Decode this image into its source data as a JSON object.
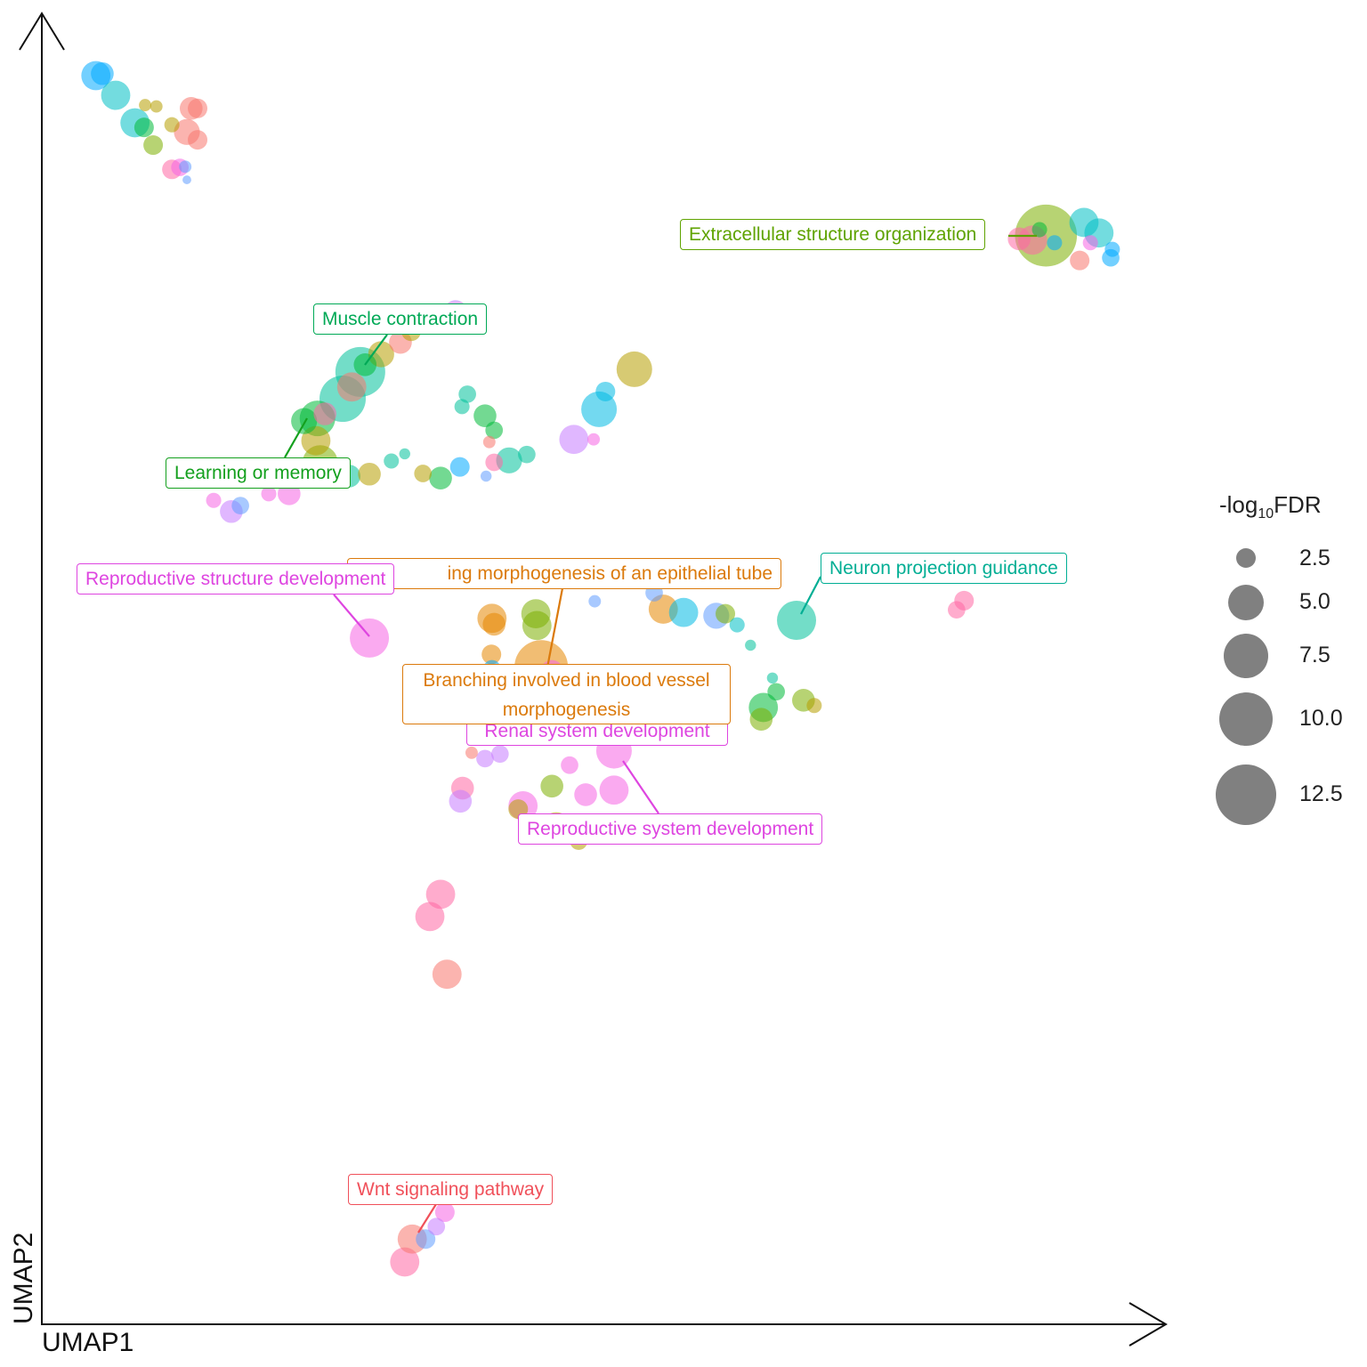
{
  "chart_data": {
    "type": "scatter",
    "title": "",
    "xlabel": "UMAP1",
    "ylabel": "UMAP2",
    "xlim": [
      0,
      21
    ],
    "ylim": [
      0,
      20
    ],
    "grid": false,
    "size_legend": {
      "title_prefix": "-log",
      "title_sub": "10",
      "title_suffix": "FDR",
      "values": [
        2.5,
        5.0,
        7.5,
        10.0,
        12.5
      ],
      "labels": [
        "2.5",
        "5.0",
        "7.5",
        "10.0",
        "12.5"
      ],
      "placement": "right"
    },
    "points": [
      [
        1.01,
        19.05,
        4,
        "#00A9FF"
      ],
      [
        1.13,
        19.08,
        3,
        "#00A9FF"
      ],
      [
        1.38,
        18.75,
        4,
        "#00BFC4"
      ],
      [
        1.74,
        18.33,
        4,
        "#00BFC4"
      ],
      [
        1.91,
        18.26,
        2.5,
        "#00BA38"
      ],
      [
        2.08,
        17.99,
        2.5,
        "#7CAE00"
      ],
      [
        1.93,
        18.6,
        1,
        "#B79F00"
      ],
      [
        2.14,
        18.58,
        1,
        "#B79F00"
      ],
      [
        2.79,
        18.55,
        3,
        "#F8766D"
      ],
      [
        2.91,
        18.55,
        2.5,
        "#F8766D"
      ],
      [
        2.71,
        18.19,
        3.5,
        "#F8766D"
      ],
      [
        2.91,
        18.07,
        2.5,
        "#F8766D"
      ],
      [
        2.43,
        18.3,
        1.5,
        "#B79F00"
      ],
      [
        2.43,
        17.62,
        2.5,
        "#FF67A4"
      ],
      [
        2.58,
        17.65,
        2,
        "#F564E3"
      ],
      [
        2.68,
        17.66,
        1,
        "#619CFF"
      ],
      [
        2.71,
        17.46,
        0.5,
        "#619CFF"
      ],
      [
        18.76,
        16.61,
        13,
        "#7CAE00"
      ],
      [
        18.51,
        16.54,
        4,
        "#FF67A4"
      ],
      [
        18.26,
        16.56,
        3,
        "#FF67A4"
      ],
      [
        19.47,
        16.81,
        4,
        "#00BFC4"
      ],
      [
        19.75,
        16.65,
        4,
        "#00BFC4"
      ],
      [
        19.39,
        16.23,
        2.5,
        "#F8766D"
      ],
      [
        19.97,
        16.27,
        2,
        "#00A9FF"
      ],
      [
        20.0,
        16.4,
        1.5,
        "#00A9FF"
      ],
      [
        19.59,
        16.5,
        1.5,
        "#F564E3"
      ],
      [
        18.92,
        16.5,
        1.5,
        "#00A9FF"
      ],
      [
        18.64,
        16.7,
        1.5,
        "#00BA38"
      ],
      [
        5.95,
        14.53,
        9,
        "#00C19A"
      ],
      [
        5.62,
        14.12,
        8,
        "#00C19A"
      ],
      [
        5.15,
        13.82,
        5,
        "#00BA38"
      ],
      [
        4.9,
        13.78,
        3.5,
        "#00BA38"
      ],
      [
        5.29,
        13.89,
        3,
        "#FF67A4"
      ],
      [
        5.79,
        14.3,
        4,
        "#F8766D"
      ],
      [
        6.34,
        14.8,
        3.5,
        "#B79F00"
      ],
      [
        6.7,
        14.98,
        3,
        "#F8766D"
      ],
      [
        6.9,
        15.15,
        2.5,
        "#B79F00"
      ],
      [
        7.73,
        15.45,
        3,
        "#C77CFF"
      ],
      [
        5.12,
        13.48,
        4,
        "#B79F00"
      ],
      [
        5.2,
        13.14,
        5,
        "#7CAE00"
      ],
      [
        6.04,
        14.64,
        3,
        "#00BA38"
      ],
      [
        5.74,
        12.94,
        3,
        "#00C19A"
      ],
      [
        6.12,
        12.97,
        3,
        "#B79F00"
      ],
      [
        6.53,
        13.17,
        1.5,
        "#00C19A"
      ],
      [
        6.78,
        13.28,
        0.8,
        "#00C19A"
      ],
      [
        7.12,
        12.98,
        2,
        "#B79F00"
      ],
      [
        7.45,
        12.91,
        3,
        "#00BA38"
      ],
      [
        7.81,
        13.08,
        2.5,
        "#00A9FF"
      ],
      [
        7.95,
        14.19,
        2,
        "#00C19A"
      ],
      [
        7.85,
        14.0,
        1.5,
        "#00C19A"
      ],
      [
        8.28,
        13.86,
        3,
        "#00BA38"
      ],
      [
        8.45,
        13.64,
        2,
        "#00BA38"
      ],
      [
        8.36,
        13.46,
        1,
        "#F8766D"
      ],
      [
        8.73,
        13.18,
        3.5,
        "#00C19A"
      ],
      [
        9.06,
        13.27,
        2,
        "#00C19A"
      ],
      [
        8.45,
        13.15,
        2,
        "#FF67A4"
      ],
      [
        8.3,
        12.94,
        0.8,
        "#619CFF"
      ],
      [
        11.07,
        14.57,
        5,
        "#B79F00"
      ],
      [
        10.41,
        13.96,
        5,
        "#00B9E3"
      ],
      [
        10.53,
        14.23,
        2.5,
        "#00B9E3"
      ],
      [
        9.94,
        13.5,
        4,
        "#C77CFF"
      ],
      [
        10.31,
        13.5,
        1,
        "#F564E3"
      ],
      [
        3.54,
        12.4,
        3,
        "#C77CFF"
      ],
      [
        3.21,
        12.57,
        1.5,
        "#F564E3"
      ],
      [
        4.24,
        12.67,
        1.5,
        "#F564E3"
      ],
      [
        4.62,
        12.67,
        3,
        "#F564E3"
      ],
      [
        3.71,
        12.49,
        2,
        "#619CFF"
      ],
      [
        6.12,
        10.47,
        6,
        "#F564E3"
      ],
      [
        8.41,
        10.77,
        4,
        "#E58700"
      ],
      [
        8.45,
        10.68,
        3,
        "#E58700"
      ],
      [
        9.23,
        10.84,
        4,
        "#7CAE00"
      ],
      [
        9.25,
        10.66,
        4,
        "#7CAE00"
      ],
      [
        8.4,
        10.22,
        2.5,
        "#E58700"
      ],
      [
        8.41,
        10.0,
        2,
        "#00A9FF"
      ],
      [
        9.33,
        10.03,
        10,
        "#E58700"
      ],
      [
        9.53,
        9.96,
        3,
        "#F564E3"
      ],
      [
        10.33,
        11.03,
        1,
        "#619CFF"
      ],
      [
        11.61,
        10.91,
        4,
        "#E58700"
      ],
      [
        11.99,
        10.86,
        4,
        "#00B9E3"
      ],
      [
        11.44,
        11.16,
        2,
        "#619CFF"
      ],
      [
        12.6,
        10.81,
        3.5,
        "#619CFF"
      ],
      [
        12.77,
        10.84,
        2.5,
        "#7CAE00"
      ],
      [
        12.99,
        10.67,
        1.5,
        "#00BFC4"
      ],
      [
        14.1,
        10.74,
        6,
        "#00C19A"
      ],
      [
        13.24,
        10.36,
        0.8,
        "#00C19A"
      ],
      [
        17.23,
        11.04,
        2.5,
        "#FF67A4"
      ],
      [
        17.09,
        10.9,
        2,
        "#FF67A4"
      ],
      [
        13.48,
        9.41,
        4,
        "#00BA38"
      ],
      [
        13.72,
        9.65,
        2,
        "#00BA38"
      ],
      [
        13.44,
        9.23,
        3,
        "#7CAE00"
      ],
      [
        14.23,
        9.52,
        3,
        "#7CAE00"
      ],
      [
        14.43,
        9.44,
        1.5,
        "#B79F00"
      ],
      [
        13.65,
        9.86,
        0.8,
        "#00C19A"
      ],
      [
        9.19,
        9.02,
        2.5,
        "#00A9FF"
      ],
      [
        10.69,
        8.75,
        5,
        "#F564E3"
      ],
      [
        8.28,
        8.63,
        2,
        "#C77CFF"
      ],
      [
        7.86,
        8.18,
        3,
        "#FF67A4"
      ],
      [
        7.82,
        7.98,
        3,
        "#C77CFF"
      ],
      [
        8.99,
        7.91,
        4,
        "#F564E3"
      ],
      [
        9.53,
        8.21,
        3,
        "#7CAE00"
      ],
      [
        10.16,
        8.08,
        3,
        "#F564E3"
      ],
      [
        10.69,
        8.15,
        4,
        "#F564E3"
      ],
      [
        9.86,
        8.53,
        2,
        "#F564E3"
      ],
      [
        9.61,
        7.59,
        4,
        "#B79F00"
      ],
      [
        10.03,
        7.37,
        2,
        "#B79F00"
      ],
      [
        8.9,
        7.86,
        2.5,
        "#B79F00"
      ],
      [
        8.03,
        8.72,
        1,
        "#F8766D"
      ],
      [
        8.56,
        8.7,
        2,
        "#C77CFF"
      ],
      [
        7.45,
        6.56,
        4,
        "#FF67A4"
      ],
      [
        7.25,
        6.22,
        4,
        "#FF67A4"
      ],
      [
        7.57,
        5.34,
        4,
        "#F8766D"
      ],
      [
        6.78,
        0.95,
        4,
        "#FF67A4"
      ],
      [
        6.92,
        1.3,
        4,
        "#F8766D"
      ],
      [
        7.17,
        1.3,
        2.5,
        "#619CFF"
      ],
      [
        7.53,
        1.71,
        2.5,
        "#F564E3"
      ],
      [
        7.37,
        1.49,
        2,
        "#C77CFF"
      ]
    ],
    "annotations": [
      {
        "text": "Extracellular structure organization",
        "color": "#5FA300"
      },
      {
        "text": "Muscle contraction",
        "color": "#00A956"
      },
      {
        "text": "Learning or memory",
        "color": "#14A01E"
      },
      {
        "text": "ing morphogenesis of an epithelial tube",
        "color": "#DB7A0C"
      },
      {
        "text": "Reproductive structure development",
        "color": "#DE45E0"
      },
      {
        "text": "Neuron projection guidance",
        "color": "#00AE94"
      },
      {
        "text": "Renal system development",
        "color": "#DE45E0"
      },
      {
        "text": "Branching involved in blood vessel morphogenesis",
        "color": "#DB7A0C"
      },
      {
        "text": "Reproductive system development",
        "color": "#DE45E0"
      },
      {
        "text": "Wnt signaling pathway",
        "color": "#F0505A"
      }
    ]
  }
}
